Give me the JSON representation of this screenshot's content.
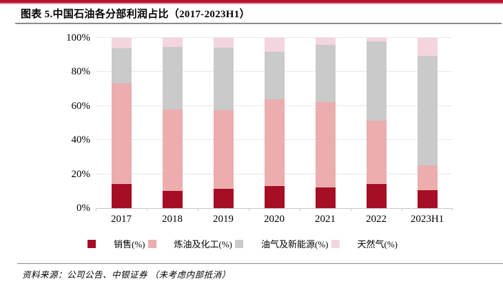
{
  "header": {
    "title": "图表 5.中国石油各分部利润占比（2017-2023H1）"
  },
  "chart_data": {
    "type": "bar",
    "stacked": true,
    "stacked_to_100_percent": true,
    "title": "中国石油各分部利润占比（2017-2023H1）",
    "categories": [
      "2017",
      "2018",
      "2019",
      "2020",
      "2021",
      "2022",
      "2023H1"
    ],
    "series": [
      {
        "name": "销售(%)",
        "color": "#A50E24",
        "values": [
          14.3,
          10.1,
          11.2,
          13.1,
          12.1,
          14.3,
          10.5
        ]
      },
      {
        "name": "炼油及化工(%)",
        "color": "#EBADAD",
        "values": [
          59.1,
          48.0,
          46.1,
          50.7,
          50.1,
          37.1,
          14.5
        ]
      },
      {
        "name": "油气及新能源(%)",
        "color": "#CACACA",
        "values": [
          20.6,
          36.7,
          36.9,
          28.0,
          33.6,
          46.7,
          64.3
        ]
      },
      {
        "name": "天然气(%)",
        "color": "#F4D5DD",
        "values": [
          6.0,
          5.2,
          5.8,
          8.2,
          4.2,
          1.9,
          10.7
        ]
      }
    ],
    "xlabel": "",
    "ylabel": "",
    "y_tick_values": [
      0,
      20,
      40,
      60,
      80,
      100
    ],
    "y_tick_labels": [
      "0%",
      "20%",
      "40%",
      "60%",
      "80%",
      "100%"
    ],
    "ylim": [
      0,
      100
    ],
    "grid": true,
    "legend_position": "bottom"
  },
  "colors": {
    "banner": "#B6122F",
    "gridline": "#E7E7E7",
    "axis": "#C6C6C6"
  },
  "footer": {
    "source": "资料来源：公司公告、中银证券 （未考虑内部抵消）"
  }
}
